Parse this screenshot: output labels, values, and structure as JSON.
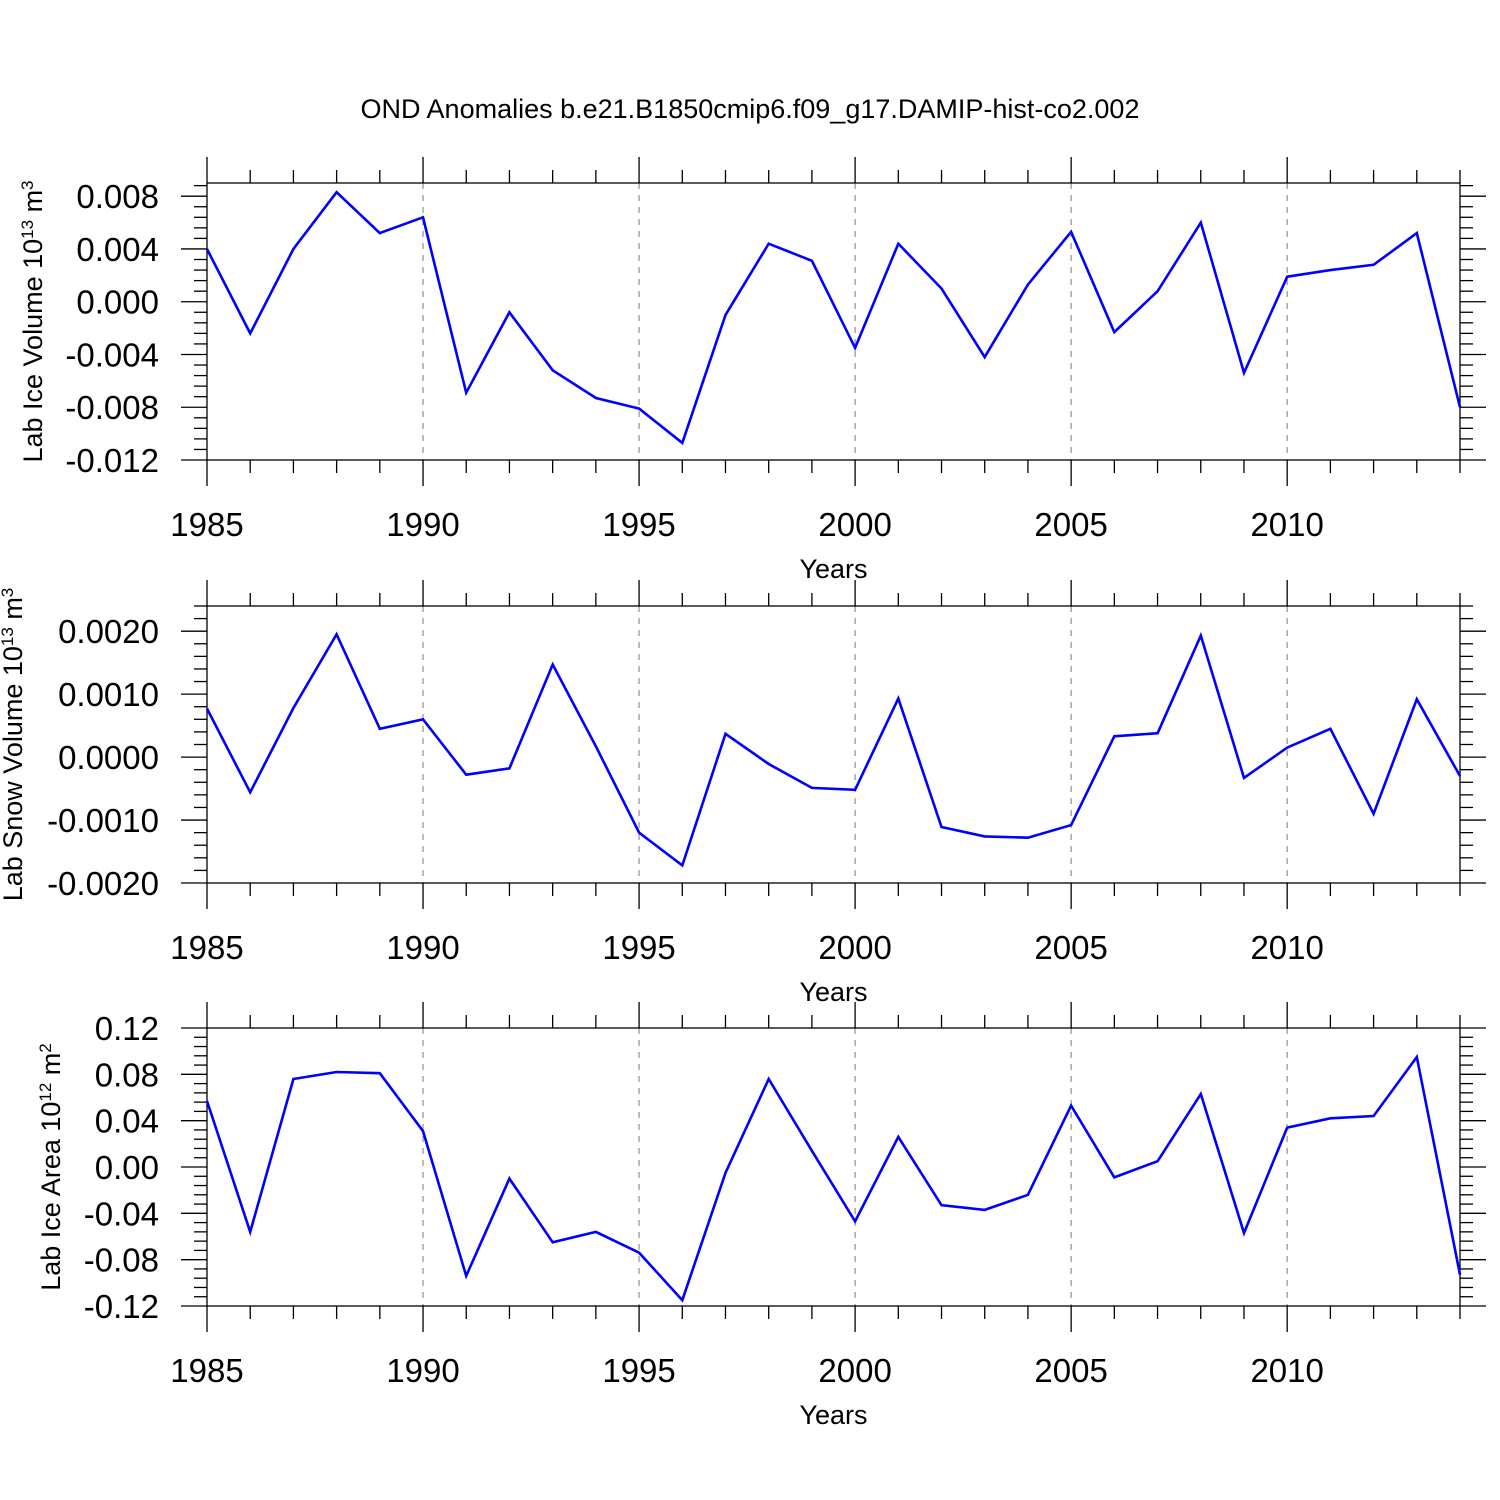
{
  "title": "OND Anomalies b.e21.B1850cmip6.f09_g17.DAMIP-hist-co2.002",
  "colors": {
    "line": "#0000ff",
    "axis": "#000000",
    "grid": "#999999"
  },
  "chart_data": [
    {
      "type": "line",
      "xlabel": "Years",
      "ylabel": {
        "text": "Lab Ice Volume 10",
        "sup1": "13",
        "mid": " m",
        "sup2": "3"
      },
      "xlim": [
        1985,
        2014
      ],
      "ylim": [
        -0.012,
        0.009
      ],
      "yticks": [
        -0.012,
        -0.008,
        -0.004,
        0.0,
        0.004,
        0.008
      ],
      "yticklabels": [
        "-0.012",
        "-0.008",
        "-0.004",
        "0.000",
        "0.004",
        "0.008"
      ],
      "xticks": [
        1985,
        1990,
        1995,
        2000,
        2005,
        2010
      ],
      "xticklabels": [
        "1985",
        "1990",
        "1995",
        "2000",
        "2005",
        "2010"
      ],
      "x": [
        1985,
        1986,
        1987,
        1988,
        1989,
        1990,
        1991,
        1992,
        1993,
        1994,
        1995,
        1996,
        1997,
        1998,
        1999,
        2000,
        2001,
        2002,
        2003,
        2004,
        2005,
        2006,
        2007,
        2008,
        2009,
        2010,
        2011,
        2012,
        2013,
        2014
      ],
      "values": [
        0.004,
        -0.0024,
        0.004,
        0.0083,
        0.0052,
        0.0064,
        -0.0069,
        -0.0008,
        -0.0052,
        -0.0073,
        -0.0081,
        -0.0107,
        -0.001,
        0.0044,
        0.0031,
        -0.0035,
        0.0044,
        0.001,
        -0.0042,
        0.0013,
        0.0053,
        -0.0023,
        0.0008,
        0.006,
        -0.0054,
        0.0019,
        0.0024,
        0.0028,
        0.0052,
        -0.008
      ]
    },
    {
      "type": "line",
      "xlabel": "Years",
      "ylabel": {
        "text": "Lab Snow Volume 10",
        "sup1": "13",
        "mid": " m",
        "sup2": "3"
      },
      "xlim": [
        1985,
        2014
      ],
      "ylim": [
        -0.002,
        0.0024
      ],
      "yticks": [
        -0.002,
        -0.001,
        0.0,
        0.001,
        0.002
      ],
      "yticklabels": [
        "-0.0020",
        "-0.0010",
        "0.0000",
        "0.0010",
        "0.0020"
      ],
      "xticks": [
        1985,
        1990,
        1995,
        2000,
        2005,
        2010
      ],
      "xticklabels": [
        "1985",
        "1990",
        "1995",
        "2000",
        "2005",
        "2010"
      ],
      "x": [
        1985,
        1986,
        1987,
        1988,
        1989,
        1990,
        1991,
        1992,
        1993,
        1994,
        1995,
        1996,
        1997,
        1998,
        1999,
        2000,
        2001,
        2002,
        2003,
        2004,
        2005,
        2006,
        2007,
        2008,
        2009,
        2010,
        2011,
        2012,
        2013,
        2014
      ],
      "values": [
        0.00077,
        -0.00056,
        0.00078,
        0.00195,
        0.00045,
        0.0006,
        -0.00028,
        -0.00018,
        0.00147,
        0.00017,
        -0.0012,
        -0.00172,
        0.00037,
        -0.00011,
        -0.00049,
        -0.00052,
        0.00093,
        -0.00111,
        -0.00126,
        -0.00128,
        -0.00108,
        0.00033,
        0.00038,
        0.00193,
        -0.00033,
        0.00015,
        0.00045,
        -0.0009,
        0.00092,
        -0.0003
      ]
    },
    {
      "type": "line",
      "xlabel": "Years",
      "ylabel": {
        "text": "Lab Ice Area 10",
        "sup1": "12",
        "mid": " m",
        "sup2": "2"
      },
      "xlim": [
        1985,
        2014
      ],
      "ylim": [
        -0.12,
        0.12
      ],
      "yticks": [
        -0.12,
        -0.08,
        -0.04,
        0.0,
        0.04,
        0.08,
        0.12
      ],
      "yticklabels": [
        "-0.12",
        "-0.08",
        "-0.04",
        "0.00",
        "0.04",
        "0.08",
        "0.12"
      ],
      "xticks": [
        1985,
        1990,
        1995,
        2000,
        2005,
        2010
      ],
      "xticklabels": [
        "1985",
        "1990",
        "1995",
        "2000",
        "2005",
        "2010"
      ],
      "x": [
        1985,
        1986,
        1987,
        1988,
        1989,
        1990,
        1991,
        1992,
        1993,
        1994,
        1995,
        1996,
        1997,
        1998,
        1999,
        2000,
        2001,
        2002,
        2003,
        2004,
        2005,
        2006,
        2007,
        2008,
        2009,
        2010,
        2011,
        2012,
        2013,
        2014
      ],
      "values": [
        0.057,
        -0.056,
        0.076,
        0.082,
        0.081,
        0.031,
        -0.094,
        -0.01,
        -0.065,
        -0.056,
        -0.074,
        -0.115,
        -0.005,
        0.076,
        0.014,
        -0.047,
        0.026,
        -0.033,
        -0.037,
        -0.024,
        0.053,
        -0.009,
        0.005,
        0.063,
        -0.057,
        0.034,
        0.042,
        0.044,
        0.095,
        -0.093
      ]
    }
  ]
}
